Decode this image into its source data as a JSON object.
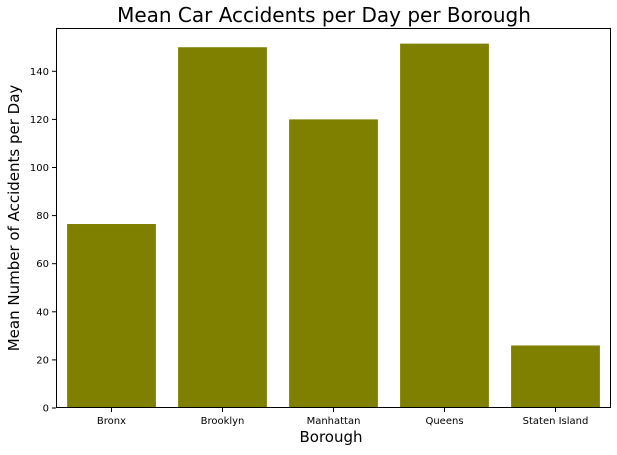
{
  "chart_data": {
    "type": "bar",
    "title": "Mean Car Accidents per Day per Borough",
    "xlabel": "Borough",
    "ylabel": "Mean Number of Accidents per Day",
    "categories": [
      "Bronx",
      "Brooklyn",
      "Manhattan",
      "Queens",
      "Staten Island"
    ],
    "values": [
      76.5,
      150,
      120,
      151.5,
      26
    ],
    "ylim": [
      0,
      158
    ],
    "yticks": [
      "0",
      "20",
      "40",
      "60",
      "80",
      "100",
      "120",
      "140"
    ],
    "bar_color": "#808000",
    "grid": false,
    "legend": false
  }
}
